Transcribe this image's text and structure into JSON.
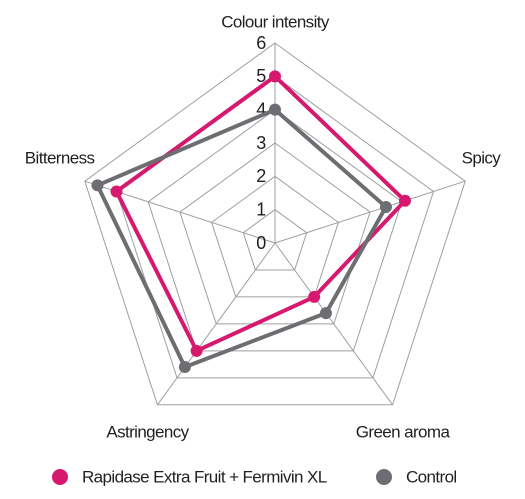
{
  "chart_data": {
    "type": "radar",
    "categories": [
      "Colour intensity",
      "Spicy",
      "Green aroma",
      "Astringency",
      "Bitterness"
    ],
    "series": [
      {
        "name": "Rapidase Extra Fruit + Fermivin XL",
        "color": "#d6196e",
        "values": [
          5.0,
          4.1,
          2.0,
          4.0,
          5.0
        ]
      },
      {
        "name": "Control",
        "color": "#6d6e71",
        "values": [
          4.0,
          3.5,
          2.6,
          4.6,
          5.6
        ]
      }
    ],
    "rlim": [
      0,
      6
    ],
    "rticks": [
      0,
      1,
      2,
      3,
      4,
      5,
      6
    ],
    "grid": true
  }
}
